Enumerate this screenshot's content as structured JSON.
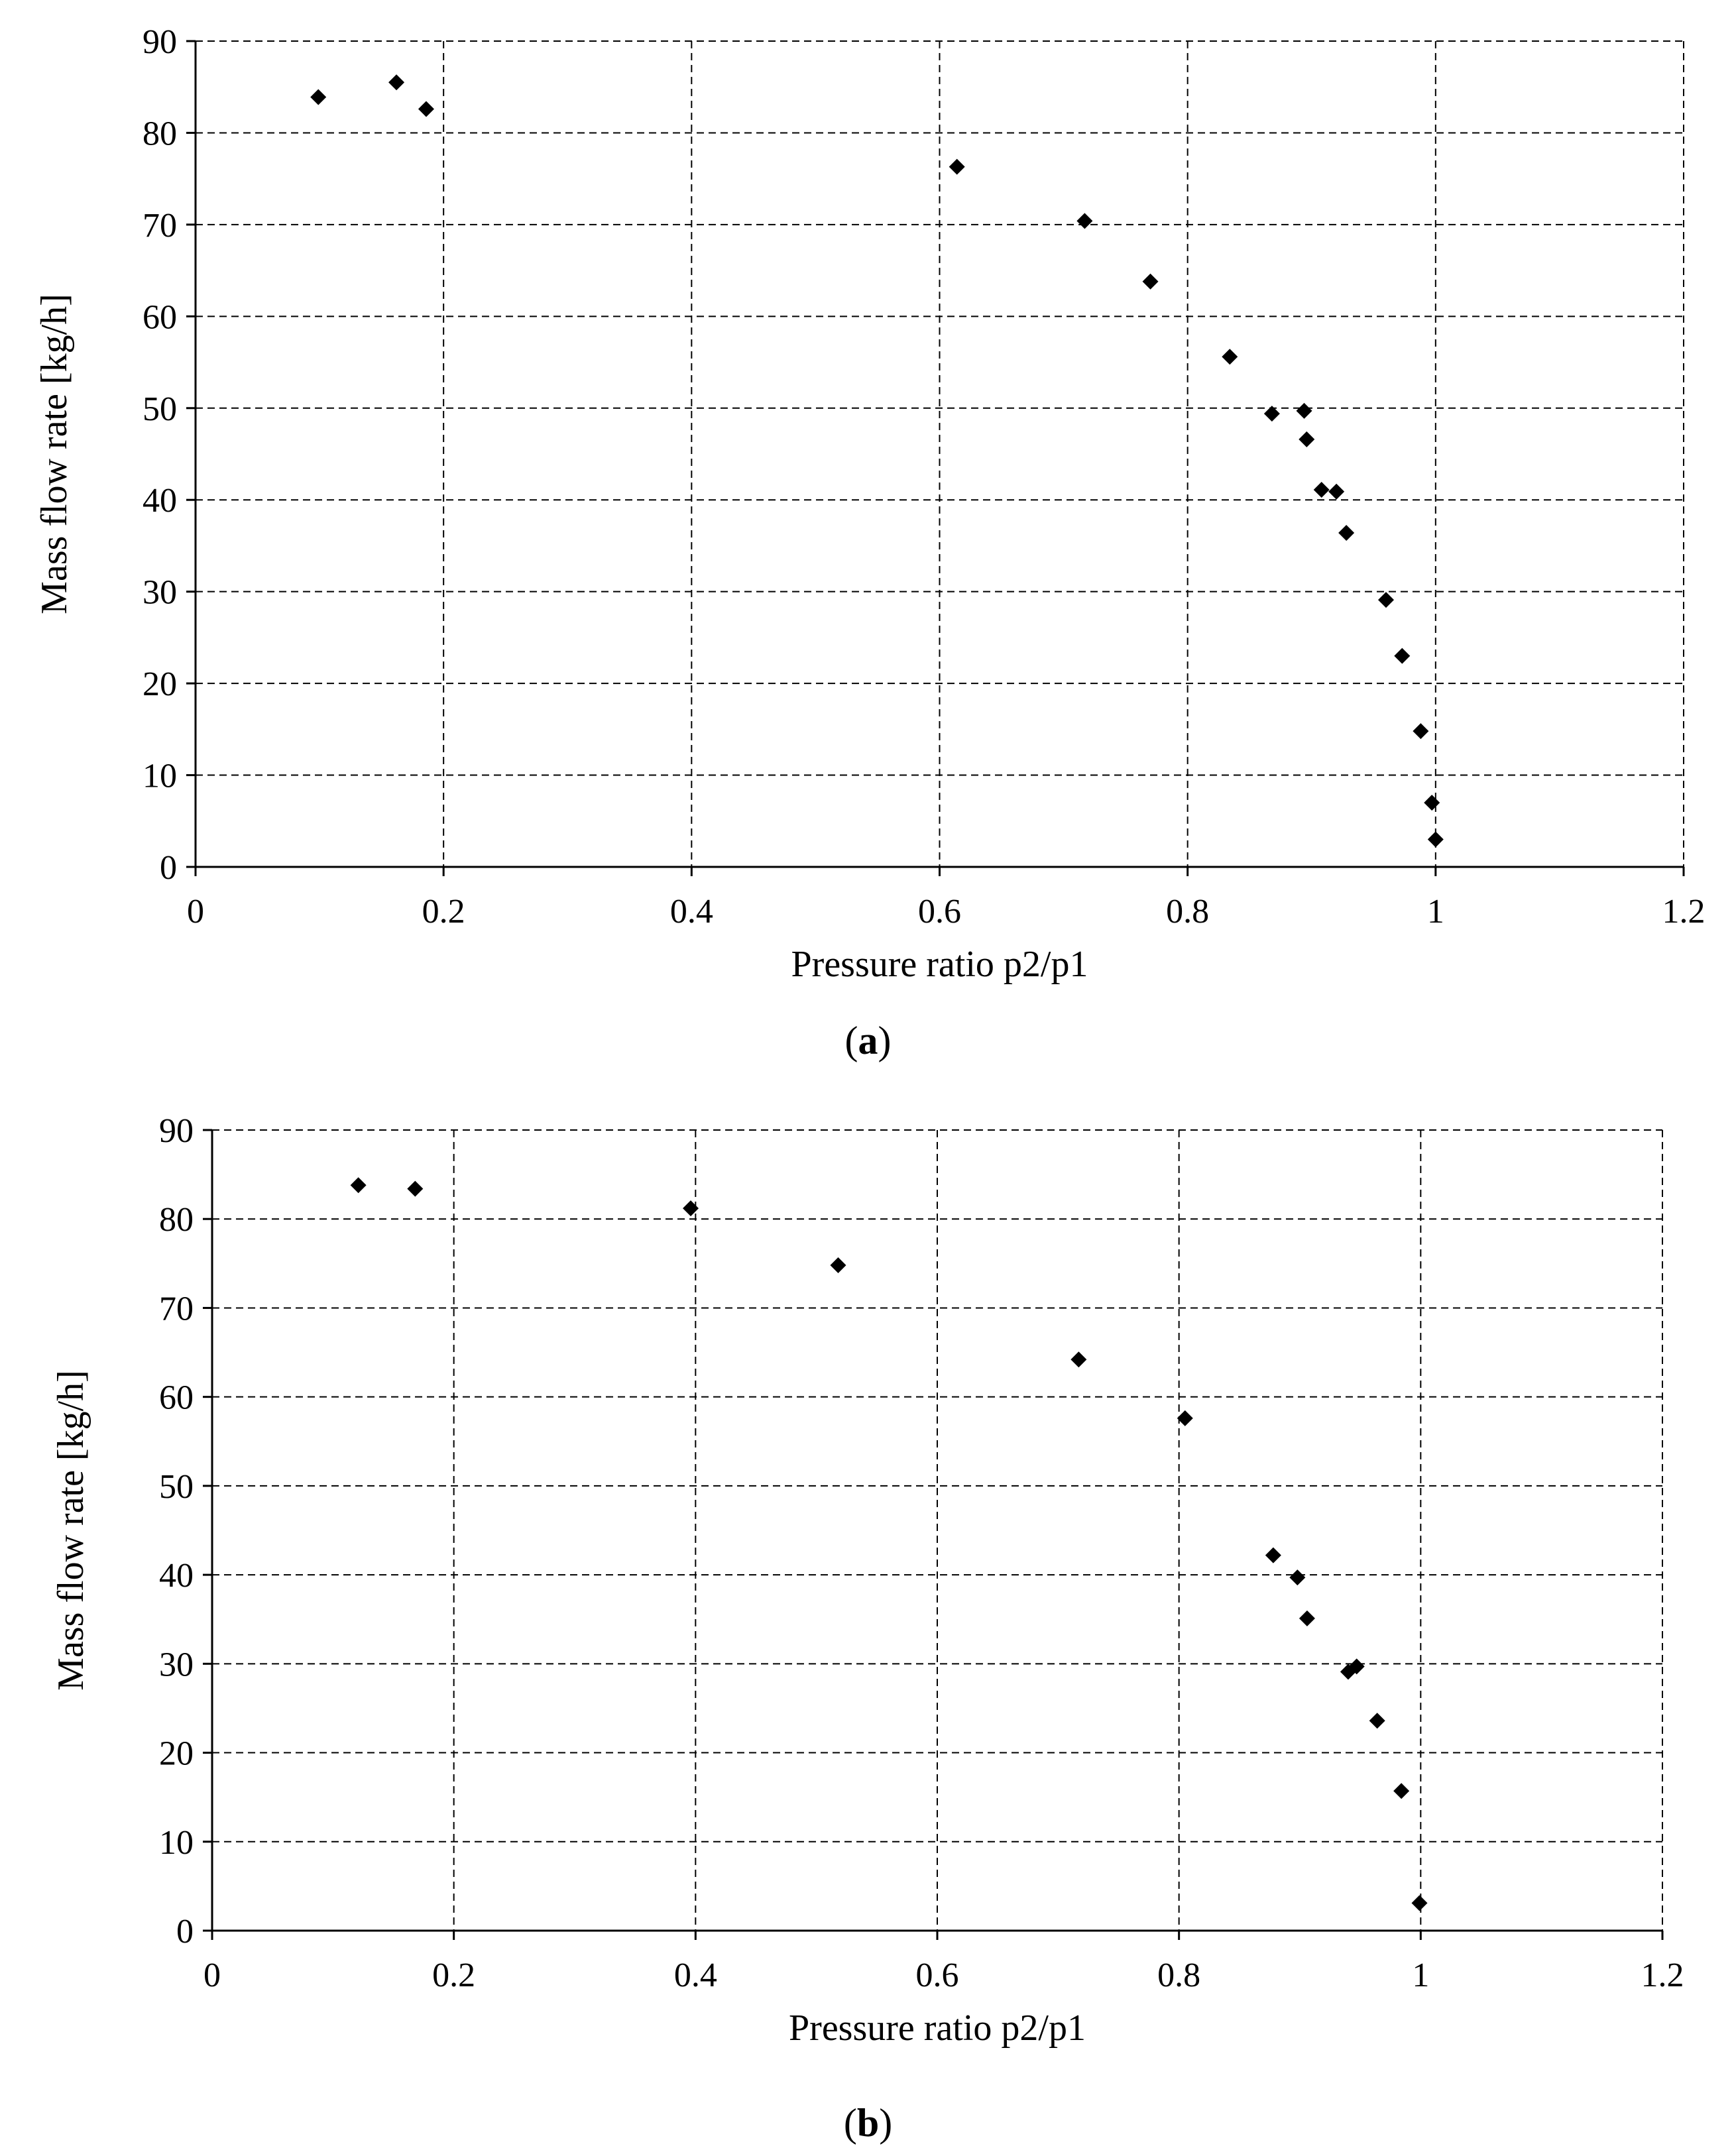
{
  "chart_data": [
    {
      "type": "scatter",
      "panel_label": "a",
      "xlabel": "Pressure ratio p2/p1",
      "ylabel": "Mass flow rate [kg/h]",
      "xlim": [
        0,
        1.2
      ],
      "ylim": [
        0,
        90
      ],
      "xticks": [
        0,
        0.2,
        0.4,
        0.6,
        0.8,
        1,
        1.2
      ],
      "xtick_labels": [
        "0",
        "0.2",
        "0.4",
        "0.6",
        "0.8",
        "1",
        "1.2"
      ],
      "yticks": [
        0,
        10,
        20,
        30,
        40,
        50,
        60,
        70,
        80,
        90
      ],
      "ytick_labels": [
        "0",
        "10",
        "20",
        "30",
        "40",
        "50",
        "60",
        "70",
        "80",
        "90"
      ],
      "grid": true,
      "grid_style": "dashed",
      "marker": "diamond",
      "marker_color": "#000000",
      "points": [
        [
          0.099,
          83.9
        ],
        [
          0.162,
          85.5
        ],
        [
          0.186,
          82.6
        ],
        [
          0.614,
          76.3
        ],
        [
          0.717,
          70.4
        ],
        [
          0.77,
          63.8
        ],
        [
          0.834,
          55.6
        ],
        [
          0.868,
          49.4
        ],
        [
          0.894,
          49.7
        ],
        [
          0.896,
          46.6
        ],
        [
          0.908,
          41.1
        ],
        [
          0.92,
          40.9
        ],
        [
          0.928,
          36.4
        ],
        [
          0.96,
          29.1
        ],
        [
          0.973,
          23.0
        ],
        [
          0.988,
          14.8
        ],
        [
          0.997,
          7.0
        ],
        [
          1.0,
          3.0
        ]
      ]
    },
    {
      "type": "scatter",
      "panel_label": "b",
      "xlabel": "Pressure ratio p2/p1",
      "ylabel": "Mass flow rate [kg/h]",
      "xlim": [
        0,
        1.2
      ],
      "ylim": [
        0,
        90
      ],
      "xticks": [
        0,
        0.2,
        0.4,
        0.6,
        0.8,
        1,
        1.2
      ],
      "xtick_labels": [
        "0",
        "0.2",
        "0.4",
        "0.6",
        "0.8",
        "1",
        "1.2"
      ],
      "yticks": [
        0,
        10,
        20,
        30,
        40,
        50,
        60,
        70,
        80,
        90
      ],
      "ytick_labels": [
        "0",
        "10",
        "20",
        "30",
        "40",
        "50",
        "60",
        "70",
        "80",
        "90"
      ],
      "grid": true,
      "grid_style": "dashed",
      "marker": "diamond",
      "marker_color": "#000000",
      "points": [
        [
          0.121,
          83.8
        ],
        [
          0.168,
          83.4
        ],
        [
          0.396,
          81.2
        ],
        [
          0.518,
          74.8
        ],
        [
          0.717,
          64.2
        ],
        [
          0.805,
          57.6
        ],
        [
          0.878,
          42.2
        ],
        [
          0.898,
          39.7
        ],
        [
          0.906,
          35.1
        ],
        [
          0.94,
          29.1
        ],
        [
          0.947,
          29.7
        ],
        [
          0.964,
          23.6
        ],
        [
          0.984,
          15.7
        ],
        [
          0.999,
          3.1
        ]
      ]
    }
  ]
}
